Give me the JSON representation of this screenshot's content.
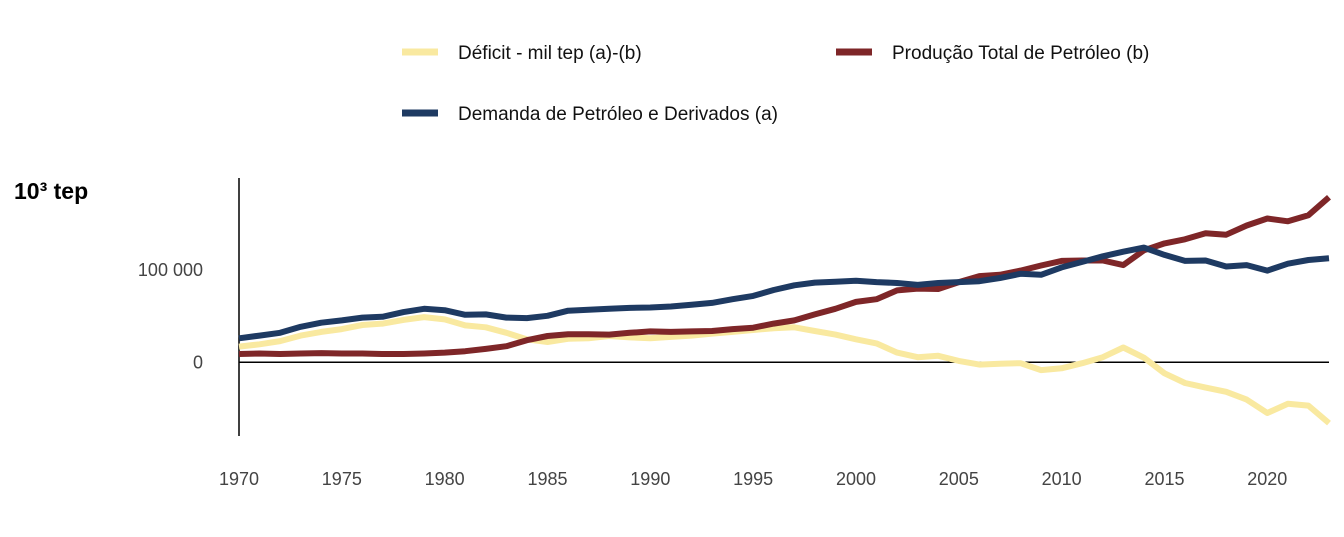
{
  "chart_data": {
    "type": "line",
    "unit_label": "10³ tep",
    "legend": {
      "placement": "top",
      "entries": [
        {
          "series": 0,
          "label": "Déficit - mil tep (a)-(b)"
        },
        {
          "series": 1,
          "label": "Produção Total de Petróleo (b)"
        },
        {
          "series": 2,
          "label": "Demanda de Petróleo e Derivados (a)"
        }
      ]
    },
    "x": [
      1970,
      1971,
      1972,
      1973,
      1974,
      1975,
      1976,
      1977,
      1978,
      1979,
      1980,
      1981,
      1982,
      1983,
      1984,
      1985,
      1986,
      1987,
      1988,
      1989,
      1990,
      1991,
      1992,
      1993,
      1994,
      1995,
      1996,
      1997,
      1998,
      1999,
      2000,
      2001,
      2002,
      2003,
      2004,
      2005,
      2006,
      2007,
      2008,
      2009,
      2010,
      2011,
      2012,
      2013,
      2014,
      2015,
      2016,
      2017,
      2018,
      2019,
      2020,
      2021,
      2022,
      2023
    ],
    "xlim": [
      1970,
      2023
    ],
    "ylim": [
      -80000,
      200000
    ],
    "x_ticks": [
      1970,
      1975,
      1980,
      1985,
      1990,
      1995,
      2000,
      2005,
      2010,
      2015,
      2020
    ],
    "x_tick_labels": [
      "1970",
      "1975",
      "1980",
      "1985",
      "1990",
      "1995",
      "2000",
      "2005",
      "2010",
      "2015",
      "2020"
    ],
    "y_ticks": [
      0,
      100000
    ],
    "y_tick_labels": [
      "0",
      "100 000"
    ],
    "zero_line": true,
    "grid": false,
    "series": [
      {
        "name": "Déficit - mil tep (a)-(b)",
        "color": "#f9e9a0",
        "values": [
          17000,
          19500,
          23000,
          29000,
          33000,
          36000,
          40500,
          42000,
          46000,
          49000,
          46500,
          40000,
          38000,
          32000,
          25000,
          22000,
          25500,
          26000,
          28500,
          27000,
          26000,
          27500,
          29000,
          31000,
          33000,
          35000,
          37000,
          38000,
          34000,
          30000,
          25000,
          20500,
          10500,
          5500,
          7000,
          1500,
          -2500,
          -1500,
          -1000,
          -8500,
          -6500,
          -1000,
          5500,
          16000,
          5000,
          -12000,
          -22500,
          -27500,
          -32000,
          -40500,
          -55000,
          -45000,
          -47000,
          -66000
        ]
      },
      {
        "name": "Produção Total de Petróleo (b)",
        "color": "#7e2628",
        "values": [
          9000,
          9500,
          9000,
          9500,
          10000,
          9500,
          9500,
          9000,
          9000,
          9500,
          10500,
          12000,
          14500,
          17500,
          24000,
          28500,
          30500,
          30500,
          30000,
          32000,
          33500,
          33000,
          33500,
          34000,
          36000,
          37500,
          42000,
          45500,
          52000,
          58000,
          65500,
          68500,
          78000,
          80000,
          79500,
          87000,
          93500,
          95000,
          99500,
          105000,
          110000,
          110500,
          110500,
          105500,
          121500,
          129000,
          133500,
          140000,
          138500,
          148500,
          156000,
          153000,
          159500,
          179000
        ]
      },
      {
        "name": "Demanda de Petróleo e Derivados (a)",
        "color": "#1e3a62",
        "values": [
          26000,
          29000,
          32000,
          38500,
          43000,
          45500,
          48500,
          49500,
          54500,
          58000,
          56500,
          51500,
          52000,
          48500,
          48000,
          50500,
          56000,
          57000,
          58000,
          59000,
          59500,
          60500,
          62500,
          64500,
          68500,
          72000,
          78500,
          83500,
          86500,
          87500,
          88500,
          87000,
          86000,
          84000,
          86000,
          87000,
          88000,
          91500,
          96000,
          95000,
          103000,
          109000,
          115000,
          120000,
          124500,
          116500,
          110000,
          110500,
          104000,
          105500,
          99500,
          107000,
          111000,
          113000
        ]
      }
    ]
  }
}
